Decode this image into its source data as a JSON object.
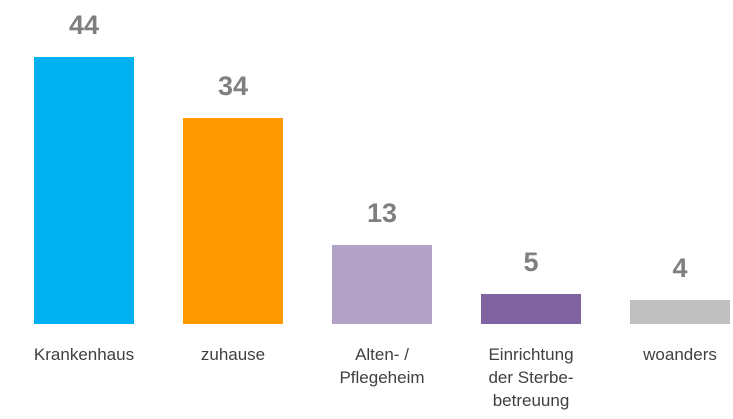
{
  "chart_data": {
    "type": "bar",
    "categories": [
      "Krankenhaus",
      "zuhause",
      "Alten- /\nPflegeheim",
      "Einrichtung\nder Sterbe-\nbetreuung",
      "woanders"
    ],
    "values": [
      44,
      34,
      13,
      5,
      4
    ],
    "colors": [
      "#00b0f0",
      "#ff9900",
      "#b3a2c7",
      "#8064a2",
      "#bfbfbf"
    ]
  }
}
